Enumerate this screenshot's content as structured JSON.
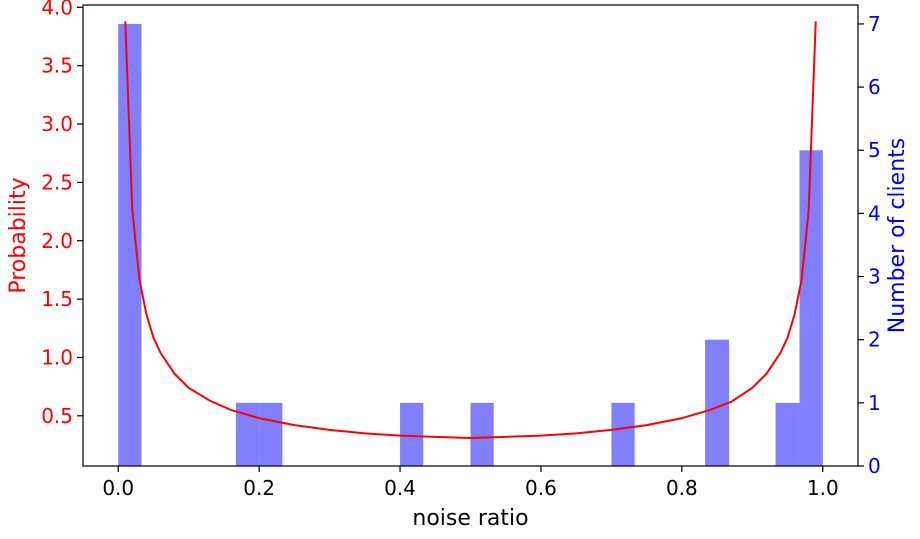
{
  "chart_data": {
    "type": "bar",
    "title": "",
    "xlabel": "noise ratio",
    "ylabel_left": "Probability",
    "ylabel_right": "Number of clients",
    "xlim": [
      -0.05,
      1.05
    ],
    "ylim_left": [
      0.07,
      4.02
    ],
    "ylim_right": [
      0,
      7.3
    ],
    "x_ticks": [
      {
        "value": 0.0,
        "label": "0.0"
      },
      {
        "value": 0.2,
        "label": "0.2"
      },
      {
        "value": 0.4,
        "label": "0.4"
      },
      {
        "value": 0.6,
        "label": "0.6"
      },
      {
        "value": 0.8,
        "label": "0.8"
      },
      {
        "value": 1.0,
        "label": "1.0"
      }
    ],
    "y_left_ticks": [
      {
        "value": 0.5,
        "label": "0.5"
      },
      {
        "value": 1.0,
        "label": "1.0"
      },
      {
        "value": 1.5,
        "label": "1.5"
      },
      {
        "value": 2.0,
        "label": "2.0"
      },
      {
        "value": 2.5,
        "label": "2.5"
      },
      {
        "value": 3.0,
        "label": "3.0"
      },
      {
        "value": 3.5,
        "label": "3.5"
      },
      {
        "value": 4.0,
        "label": "4.0"
      }
    ],
    "y_right_ticks": [
      {
        "value": 0,
        "label": "0"
      },
      {
        "value": 1,
        "label": "1"
      },
      {
        "value": 2,
        "label": "2"
      },
      {
        "value": 3,
        "label": "3"
      },
      {
        "value": 4,
        "label": "4"
      },
      {
        "value": 5,
        "label": "5"
      },
      {
        "value": 6,
        "label": "6"
      },
      {
        "value": 7,
        "label": "7"
      }
    ],
    "series": [
      {
        "kind": "histogram",
        "axis": "right",
        "bins": [
          {
            "x0": 0.0,
            "x1": 0.033,
            "count": 7
          },
          {
            "x0": 0.167,
            "x1": 0.2,
            "count": 1
          },
          {
            "x0": 0.2,
            "x1": 0.233,
            "count": 1
          },
          {
            "x0": 0.4,
            "x1": 0.433,
            "count": 1
          },
          {
            "x0": 0.5,
            "x1": 0.533,
            "count": 1
          },
          {
            "x0": 0.7,
            "x1": 0.733,
            "count": 1
          },
          {
            "x0": 0.833,
            "x1": 0.867,
            "count": 2
          },
          {
            "x0": 0.933,
            "x1": 0.967,
            "count": 1
          },
          {
            "x0": 0.967,
            "x1": 1.0,
            "count": 5
          }
        ]
      },
      {
        "kind": "line",
        "axis": "left",
        "x": [
          0.01,
          0.02,
          0.03,
          0.04,
          0.05,
          0.06,
          0.08,
          0.1,
          0.13,
          0.16,
          0.2,
          0.25,
          0.3,
          0.35,
          0.4,
          0.45,
          0.5,
          0.55,
          0.6,
          0.65,
          0.7,
          0.75,
          0.8,
          0.84,
          0.87,
          0.9,
          0.92,
          0.94,
          0.95,
          0.96,
          0.97,
          0.98,
          0.99
        ],
        "y": [
          3.88,
          2.26,
          1.67,
          1.37,
          1.17,
          1.04,
          0.86,
          0.74,
          0.63,
          0.55,
          0.48,
          0.42,
          0.38,
          0.35,
          0.33,
          0.32,
          0.31,
          0.32,
          0.33,
          0.35,
          0.38,
          0.42,
          0.48,
          0.55,
          0.62,
          0.74,
          0.86,
          1.04,
          1.17,
          1.37,
          1.67,
          2.26,
          3.88
        ]
      }
    ],
    "colors": {
      "histogram": "#8080ff",
      "line": "#ff0000",
      "left_axis": "#ff0000",
      "right_axis": "#0000ff",
      "frame": "#000000"
    }
  }
}
